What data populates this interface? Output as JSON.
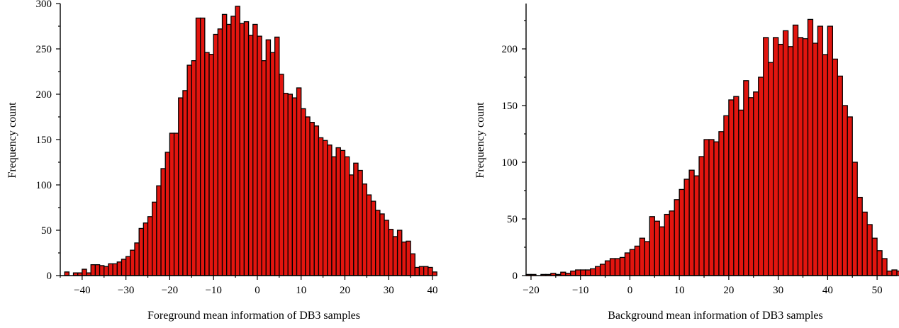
{
  "chart_data": [
    {
      "type": "bar",
      "xlabel": "Foreground mean information of DB3 samples",
      "ylabel": "Frequency count",
      "xlim": [
        -45,
        40
      ],
      "ylim": [
        0,
        300
      ],
      "bin_width": 1,
      "x_start": -44,
      "xticks": [
        "−40",
        "−30",
        "−20",
        "−10",
        "0",
        "10",
        "20",
        "30",
        "40"
      ],
      "yticks": [
        "0",
        "50",
        "100",
        "150",
        "200",
        "250",
        "300"
      ],
      "values": [
        4,
        0,
        3,
        3,
        7,
        3,
        12,
        12,
        11,
        10,
        13,
        13,
        15,
        18,
        21,
        28,
        36,
        52,
        58,
        65,
        81,
        99,
        118,
        136,
        157,
        157,
        196,
        204,
        232,
        237,
        284,
        284,
        246,
        244,
        266,
        272,
        288,
        277,
        286,
        297,
        278,
        280,
        265,
        277,
        264,
        237,
        260,
        246,
        263,
        222,
        201,
        200,
        196,
        207,
        184,
        175,
        169,
        165,
        152,
        149,
        144,
        131,
        141,
        138,
        131,
        111,
        124,
        116,
        101,
        89,
        82,
        72,
        68,
        61,
        51,
        43,
        50,
        37,
        38,
        24,
        9,
        10,
        10,
        9,
        4
      ],
      "colors": {
        "bar_fill": "#E2150F",
        "bar_alt_fill": "#7A0906",
        "edge": "#000000"
      },
      "grid": false
    },
    {
      "type": "bar",
      "xlabel": "Background mean information of DB3 samples",
      "ylabel": "Frequency count",
      "xlim": [
        -21,
        54
      ],
      "ylim": [
        0,
        240
      ],
      "bin_width": 1,
      "x_start": -21,
      "xticks": [
        "−20",
        "−10",
        "0",
        "10",
        "20",
        "30",
        "40",
        "50"
      ],
      "yticks": [
        "0",
        "50",
        "100",
        "150",
        "200"
      ],
      "values": [
        1,
        1,
        0,
        1,
        1,
        2,
        1,
        3,
        2,
        4,
        5,
        5,
        5,
        6,
        8,
        10,
        13,
        15,
        15,
        16,
        20,
        23,
        26,
        33,
        30,
        52,
        48,
        43,
        54,
        57,
        67,
        76,
        85,
        93,
        88,
        105,
        120,
        120,
        118,
        127,
        141,
        155,
        158,
        146,
        172,
        157,
        162,
        175,
        210,
        188,
        210,
        204,
        216,
        202,
        221,
        210,
        209,
        226,
        205,
        220,
        195,
        220,
        191,
        176,
        150,
        140,
        100,
        69,
        56,
        45,
        33,
        22,
        15,
        4,
        5,
        4
      ],
      "colors": {
        "bar_fill": "#E2150F",
        "bar_alt_fill": "#7A0906",
        "edge": "#000000"
      },
      "grid": false
    }
  ]
}
